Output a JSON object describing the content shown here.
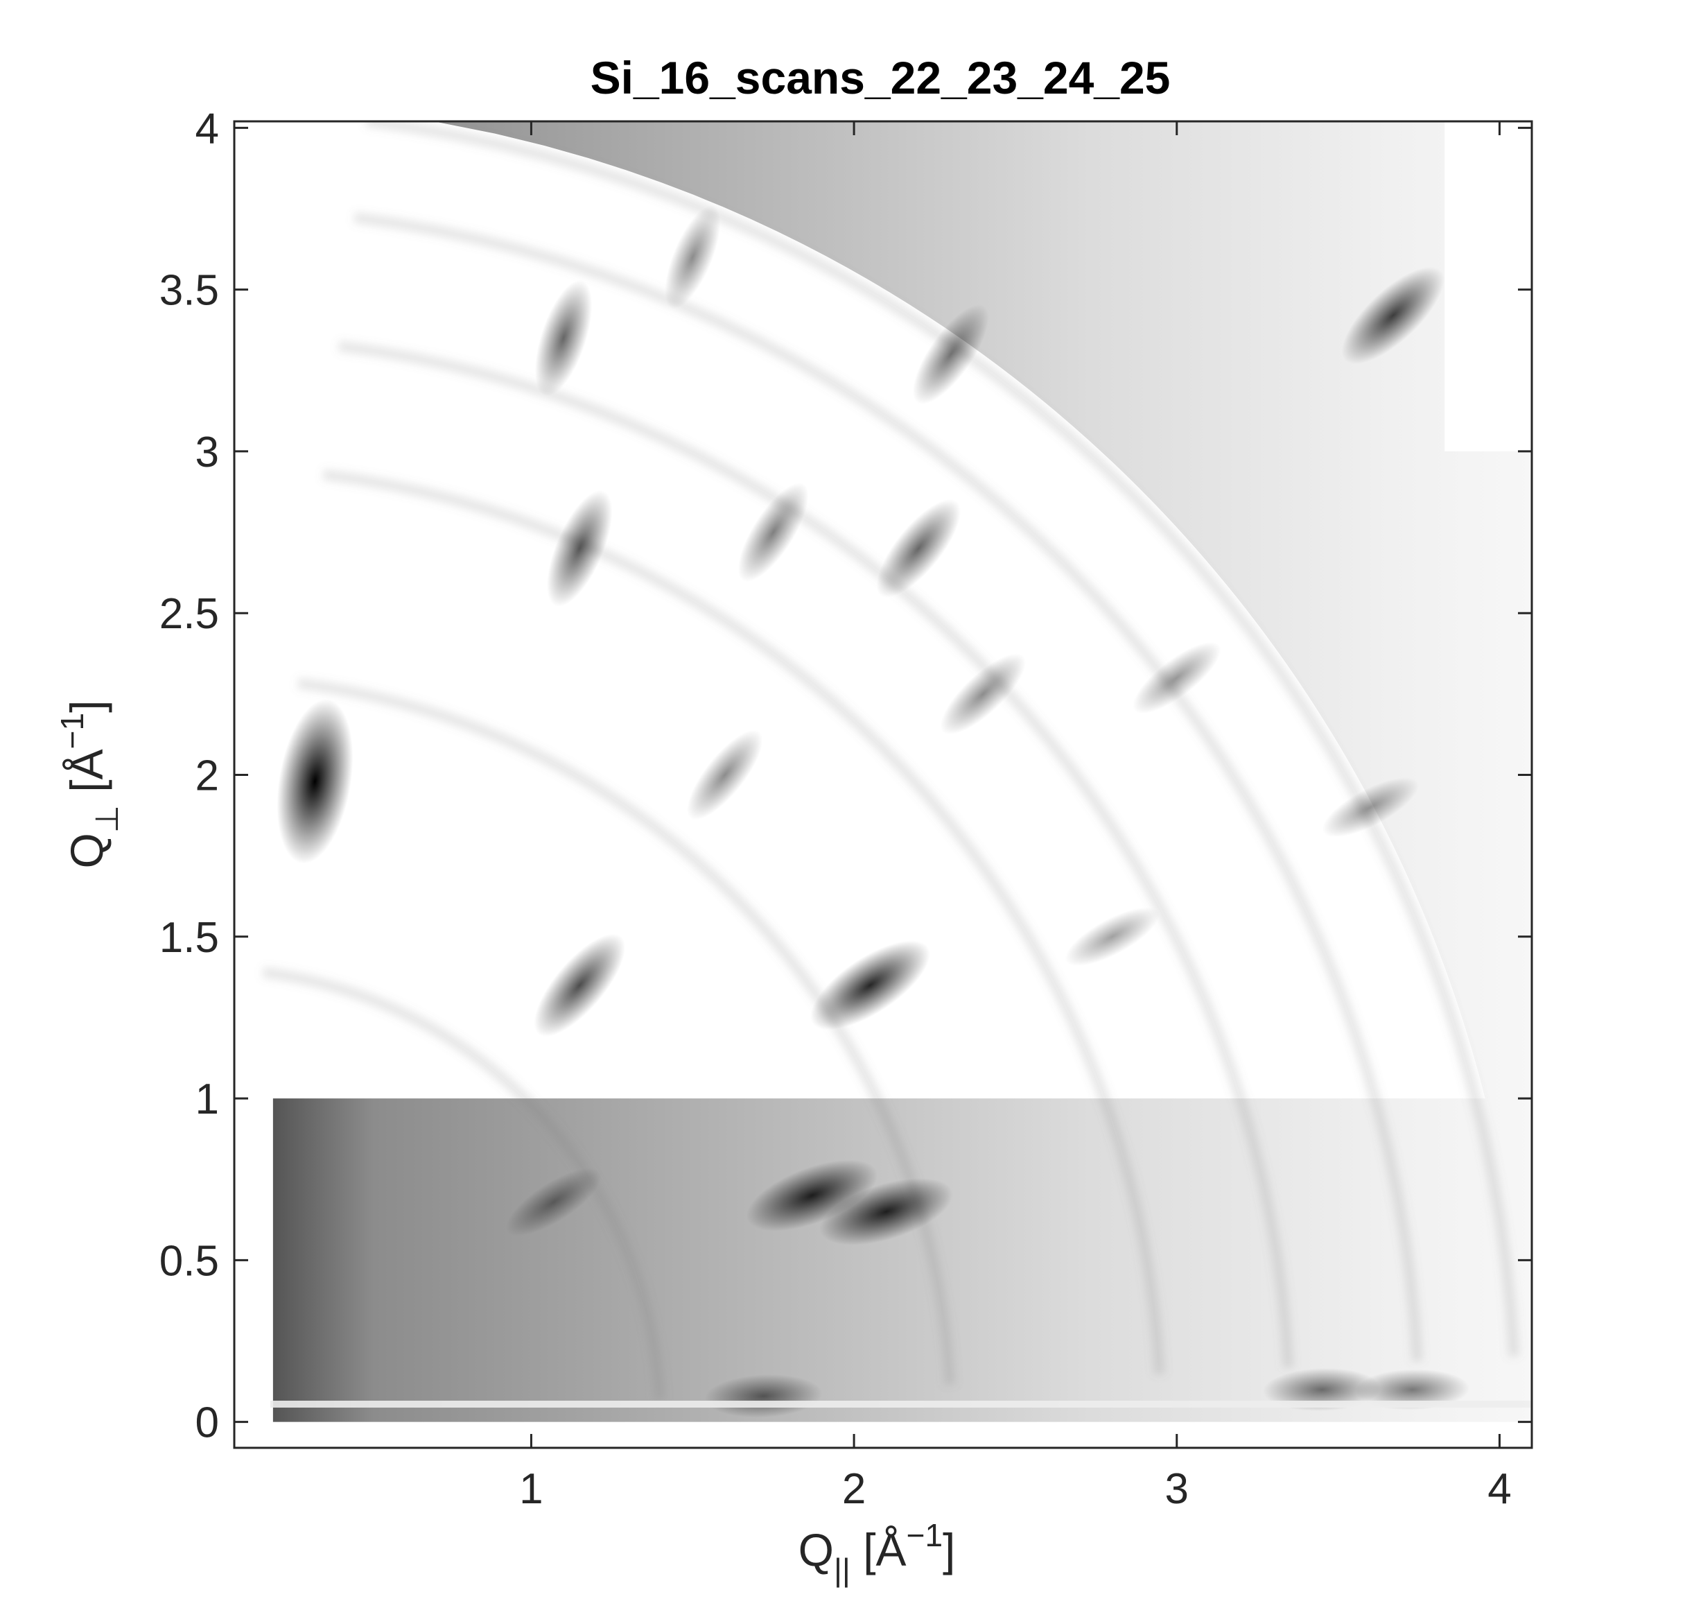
{
  "chart_data": {
    "type": "heatmap",
    "title": "Si_16_scans_22_23_24_25",
    "xlabel": {
      "base": "Q",
      "sub": "||",
      "unit_open": "[Å",
      "unit_sup": "−1",
      "unit_close": "]"
    },
    "ylabel": {
      "base": "Q",
      "sub": "⊥",
      "unit_open": "[Å",
      "unit_sup": "−1",
      "unit_close": "]"
    },
    "xlim": [
      0.08,
      4.1
    ],
    "ylim": [
      -0.08,
      4.02
    ],
    "xticks": [
      {
        "value": 1,
        "label": "1"
      },
      {
        "value": 2,
        "label": "2"
      },
      {
        "value": 3,
        "label": "3"
      },
      {
        "value": 4,
        "label": "4"
      }
    ],
    "yticks": [
      {
        "value": 0,
        "label": "0"
      },
      {
        "value": 0.5,
        "label": "0.5"
      },
      {
        "value": 1,
        "label": "1"
      },
      {
        "value": 1.5,
        "label": "1.5"
      },
      {
        "value": 2,
        "label": "2"
      },
      {
        "value": 2.5,
        "label": "2.5"
      },
      {
        "value": 3,
        "label": "3"
      },
      {
        "value": 3.5,
        "label": "3.5"
      },
      {
        "value": 4,
        "label": "4"
      }
    ],
    "colormap": "gray (dark = high intensity)",
    "colors": {
      "background": "#ffffff",
      "axis": "#262626",
      "peak": "#000000"
    },
    "grid": false,
    "detector_edge_radius": 4.08,
    "peaks": [
      {
        "qx": 0.33,
        "qy": 1.98,
        "intensity": 1.0
      },
      {
        "qx": 1.1,
        "qy": 3.35,
        "intensity": 0.35
      },
      {
        "qx": 1.5,
        "qy": 3.6,
        "intensity": 0.2
      },
      {
        "qx": 1.15,
        "qy": 2.7,
        "intensity": 0.4
      },
      {
        "qx": 1.75,
        "qy": 2.75,
        "intensity": 0.25
      },
      {
        "qx": 2.2,
        "qy": 2.7,
        "intensity": 0.35
      },
      {
        "qx": 2.3,
        "qy": 3.3,
        "intensity": 0.3
      },
      {
        "qx": 1.15,
        "qy": 1.35,
        "intensity": 0.45
      },
      {
        "qx": 2.05,
        "qy": 1.35,
        "intensity": 0.6
      },
      {
        "qx": 1.6,
        "qy": 2.0,
        "intensity": 0.2
      },
      {
        "qx": 2.4,
        "qy": 2.25,
        "intensity": 0.2
      },
      {
        "qx": 1.87,
        "qy": 0.7,
        "intensity": 0.6
      },
      {
        "qx": 2.1,
        "qy": 0.65,
        "intensity": 0.6
      },
      {
        "qx": 1.07,
        "qy": 0.68,
        "intensity": 0.2
      },
      {
        "qx": 1.72,
        "qy": 0.08,
        "intensity": 0.3
      },
      {
        "qx": 3.45,
        "qy": 0.1,
        "intensity": 0.3
      },
      {
        "qx": 3.73,
        "qy": 0.1,
        "intensity": 0.25
      },
      {
        "qx": 3.67,
        "qy": 3.42,
        "intensity": 0.5
      },
      {
        "qx": 3.0,
        "qy": 2.3,
        "intensity": 0.15
      },
      {
        "qx": 3.6,
        "qy": 1.9,
        "intensity": 0.15
      },
      {
        "qx": 2.8,
        "qy": 1.5,
        "intensity": 0.12
      }
    ]
  }
}
